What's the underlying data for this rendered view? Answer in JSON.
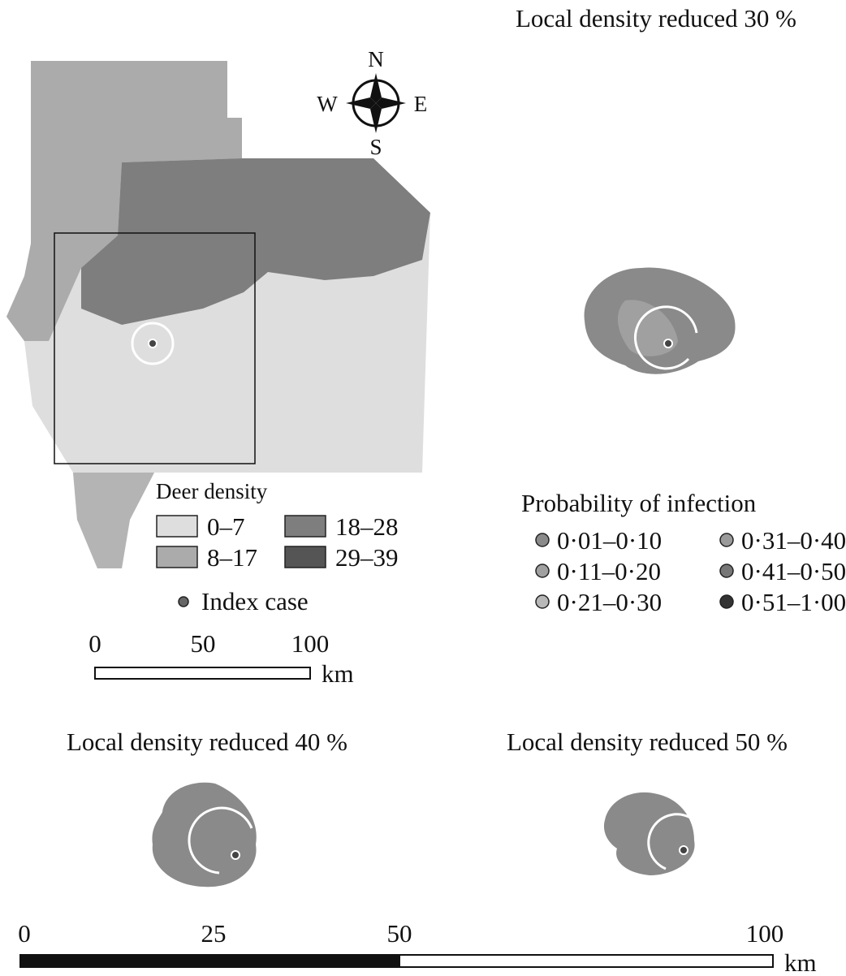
{
  "compass": {
    "north": "N",
    "east": "E",
    "south": "S",
    "west": "W"
  },
  "panels": [
    {
      "title": "Local density reduced 30 %"
    },
    {
      "title": "Local density reduced 40 %"
    },
    {
      "title": "Local density reduced 50 %"
    }
  ],
  "deer_legend": {
    "title": "Deer density",
    "items": [
      {
        "label": "0–7",
        "color": "#dedede"
      },
      {
        "label": "8–17",
        "color": "#ababab"
      },
      {
        "label": "18–28",
        "color": "#7e7e7e"
      },
      {
        "label": "29–39",
        "color": "#555555"
      }
    ],
    "index_case": "Index case"
  },
  "probability_legend": {
    "title": "Probability of infection",
    "items": [
      {
        "label": "0·01–0·10",
        "color": "#8a8a8a"
      },
      {
        "label": "0·11–0·20",
        "color": "#a0a0a0"
      },
      {
        "label": "0·21–0·30",
        "color": "#b8b8b8"
      },
      {
        "label": "0·31–0·40",
        "color": "#9a9a9a"
      },
      {
        "label": "0·41–0·50",
        "color": "#777777"
      },
      {
        "label": "0·51–1·00",
        "color": "#333333"
      }
    ]
  },
  "scale_bar_top": {
    "labels": [
      "0",
      "50",
      "100"
    ],
    "unit": "km"
  },
  "scale_bar_bottom": {
    "labels": [
      "0",
      "25",
      "50",
      "100"
    ],
    "unit": "km"
  }
}
